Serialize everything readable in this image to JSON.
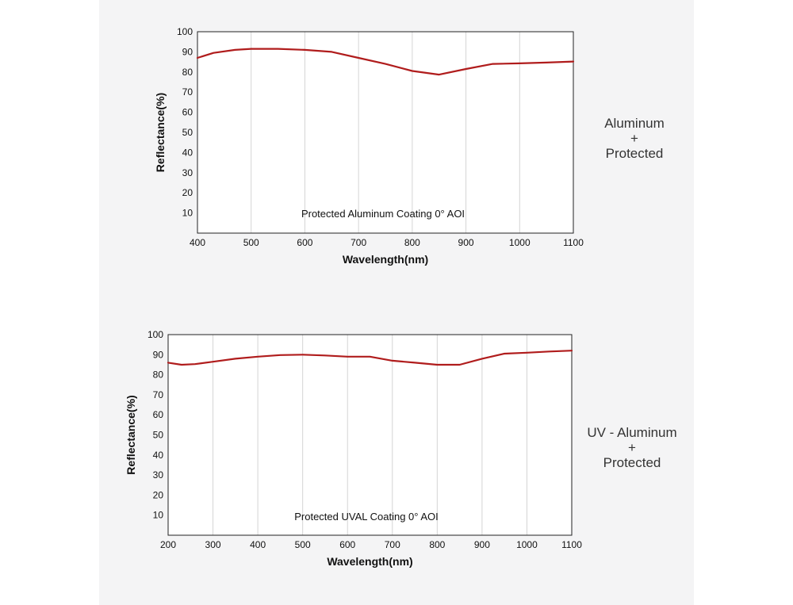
{
  "chart_data": [
    {
      "type": "line",
      "title": "",
      "xlabel": "Wavelength(nm)",
      "ylabel": "Reflectance(%)",
      "xlim": [
        400,
        1100
      ],
      "ylim": [
        0,
        100
      ],
      "x_ticks": [
        400,
        500,
        600,
        700,
        800,
        900,
        1000,
        1100
      ],
      "y_ticks": [
        10,
        20,
        30,
        40,
        50,
        60,
        70,
        80,
        90,
        100
      ],
      "grid": "vertical",
      "annotation": "Protected Aluminum Coating  0°  AOI",
      "side_label": [
        "Aluminum",
        "+",
        "Protected"
      ],
      "series_color": "#b01c1c",
      "series": [
        {
          "x": [
            400,
            430,
            470,
            500,
            550,
            600,
            650,
            700,
            750,
            800,
            850,
            900,
            950,
            1000,
            1050,
            1100
          ],
          "y": [
            87,
            89.5,
            91,
            91.5,
            91.5,
            91,
            90,
            87,
            84,
            80.5,
            78.7,
            81.5,
            84,
            84.3,
            84.7,
            85.2
          ]
        }
      ]
    },
    {
      "type": "line",
      "title": "",
      "xlabel": "Wavelength(nm)",
      "ylabel": "Reflectance(%)",
      "xlim": [
        200,
        1100
      ],
      "ylim": [
        0,
        100
      ],
      "x_ticks": [
        200,
        300,
        400,
        500,
        600,
        700,
        800,
        900,
        1000,
        1100
      ],
      "y_ticks": [
        10,
        20,
        30,
        40,
        50,
        60,
        70,
        80,
        90,
        100
      ],
      "grid": "vertical",
      "annotation": "Protected UVAL Coating  0°  AOI",
      "side_label": [
        "UV - Aluminum",
        "+",
        "Protected"
      ],
      "series_color": "#b01c1c",
      "series": [
        {
          "x": [
            200,
            230,
            260,
            300,
            350,
            400,
            450,
            500,
            550,
            600,
            650,
            700,
            750,
            800,
            850,
            900,
            950,
            1000,
            1050,
            1100
          ],
          "y": [
            86,
            85,
            85.3,
            86.5,
            88,
            89,
            89.8,
            90,
            89.6,
            89,
            89,
            87,
            86,
            85,
            85,
            88,
            90.5,
            91,
            91.6,
            92
          ]
        }
      ]
    }
  ]
}
